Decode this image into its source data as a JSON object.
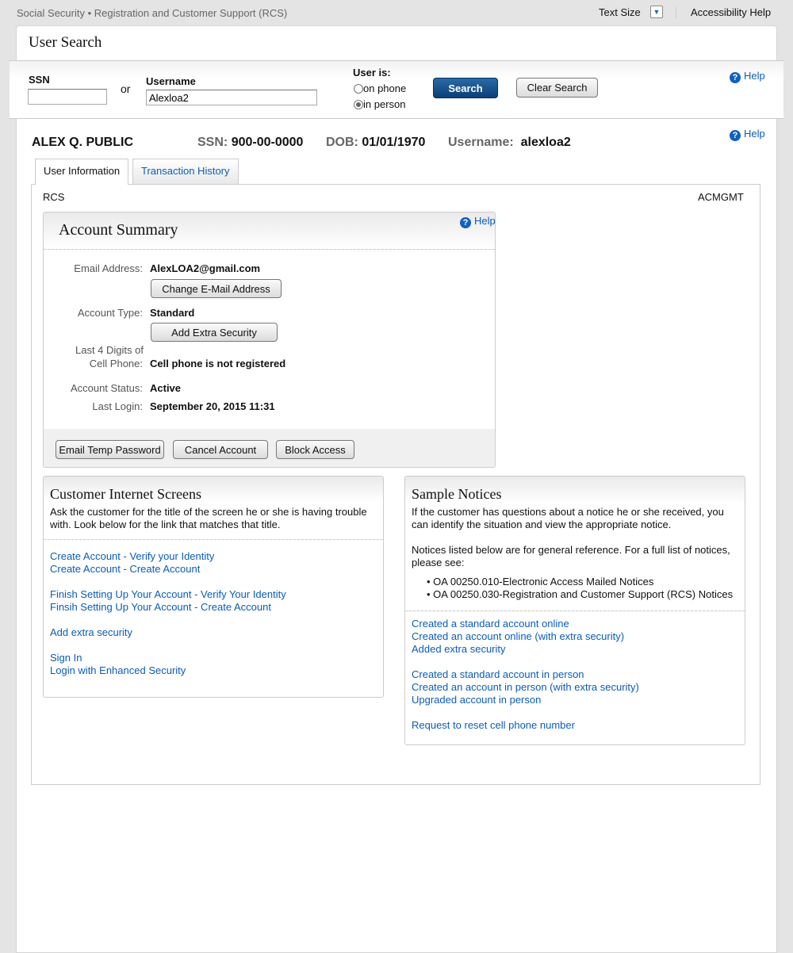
{
  "topbar": {
    "title": "Social Security • Registration and Customer Support (RCS)",
    "text_size_label": "Text Size",
    "accessibility_help": "Accessibility Help",
    "text_size_icon": "chevron-down-icon"
  },
  "page_title": "User Search",
  "search": {
    "ssn_label": "SSN",
    "ssn_value": "",
    "or_label": "or",
    "username_label": "Username",
    "username_value": "Alexloa2",
    "user_is_label": "User is:",
    "options": [
      {
        "label": "on phone",
        "selected": false
      },
      {
        "label": "in person",
        "selected": true
      }
    ],
    "search_button": "Search",
    "clear_button": "Clear Search",
    "help": "Help"
  },
  "user": {
    "name": "ALEX Q. PUBLIC",
    "ssn_label": "SSN:",
    "ssn": "900-00-0000",
    "dob_label": "DOB:",
    "dob": "01/01/1970",
    "username_label": "Username:",
    "username": "alexloa2",
    "help": "Help"
  },
  "tabs": [
    {
      "label": "User Information",
      "active": true
    },
    {
      "label": "Transaction History",
      "active": false
    }
  ],
  "tab_content": {
    "left_label": "RCS",
    "right_label": "ACMGMT"
  },
  "account_summary": {
    "title": "Account Summary",
    "help": "Help",
    "email_label": "Email Address:",
    "email": "AlexLOA2@gmail.com",
    "change_email_button": "Change E-Mail Address",
    "type_label": "Account Type:",
    "type": "Standard",
    "add_security_button": "Add Extra Security",
    "cell_label_1": "Last 4 Digits of",
    "cell_label_2": "Cell Phone:",
    "cell": "Cell phone is not registered",
    "status_label": "Account Status:",
    "status": "Active",
    "login_label": "Last Login:",
    "login": "September 20, 2015 11:31",
    "actions": [
      "Email Temp Password",
      "Cancel Account",
      "Block Access"
    ]
  },
  "internet_screens": {
    "title": "Customer Internet Screens",
    "description": "Ask the customer for the title of the screen he or she is having trouble with. Look below for the link that matches that title.",
    "groups": [
      [
        "Create Account - Verify your Identity",
        "Create Account - Create Account"
      ],
      [
        "Finish Setting Up Your Account - Verify Your Identity",
        "Finsih Setting Up Your Account - Create Account"
      ],
      [
        "Add extra security"
      ],
      [
        "Sign In",
        "Login with Enhanced Security"
      ]
    ]
  },
  "sample_notices": {
    "title": "Sample Notices",
    "description": "If the customer has questions about a notice he or she received, you can identify the situation and view the appropriate notice.",
    "reference": "Notices listed below are for general reference. For a full list of notices, please see:",
    "bullets": [
      "OA 00250.010-Electronic Access Mailed Notices",
      "OA 00250.030-Registration and Customer Support (RCS) Notices"
    ],
    "groups": [
      [
        "Created a standard account online",
        "Created an account online (with extra security)",
        "Added extra security"
      ],
      [
        "Created a standard account in person",
        "Created an account in person (with extra security)",
        "Upgraded account in person"
      ],
      [
        "Request to reset cell phone number"
      ]
    ]
  }
}
